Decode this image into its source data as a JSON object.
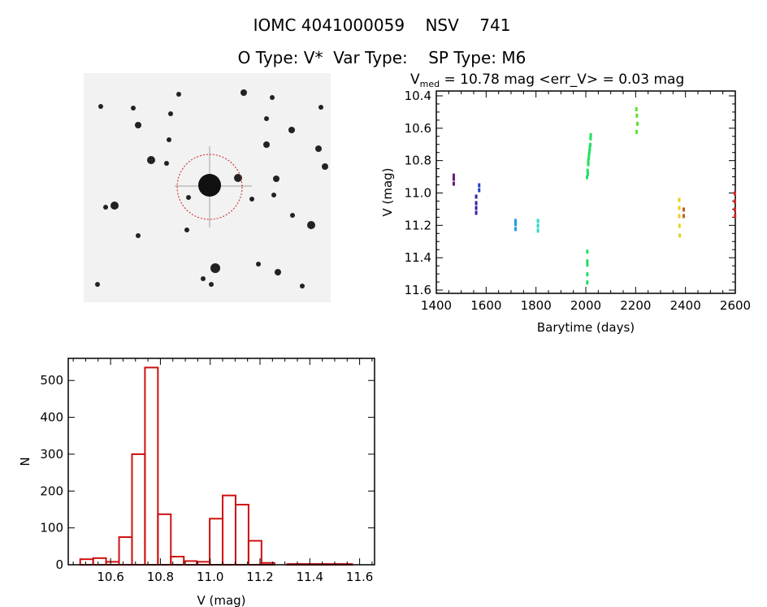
{
  "header": {
    "title": "IOMC 4041000059    NSV    741",
    "subtitle": "O Type: V*  Var Type:    SP Type: M6"
  },
  "colors": {
    "axis": "#000000",
    "hist": "#d01010",
    "circle": "#cc2020"
  },
  "chart_data": [
    {
      "type": "scatter",
      "title_prefix": "V",
      "title_sub": "med",
      "title_rest": " = 10.78 mag <err_V> = 0.03 mag",
      "xlabel": "Barytime (days)",
      "ylabel": "V (mag)",
      "xlim": [
        1400,
        2600
      ],
      "ylim": [
        10.37,
        11.62
      ],
      "y_inverted": true,
      "xticks": [
        1400,
        1600,
        1800,
        2000,
        2200,
        2400,
        2600
      ],
      "xtick_labels": [
        "1400",
        "1600",
        "1800",
        "2000",
        "2200",
        "2400",
        "2600"
      ],
      "yticks": [
        10.4,
        10.6,
        10.8,
        11.0,
        11.2,
        11.4,
        11.6
      ],
      "ytick_labels": [
        "10.4",
        "10.6",
        "10.8",
        "11.0",
        "11.2",
        "11.4",
        "11.6"
      ],
      "series": [
        {
          "color": "#6a1a7a",
          "x": [
            1470,
            1470,
            1470
          ],
          "y": [
            10.89,
            10.91,
            10.94
          ]
        },
        {
          "color": "#4020a0",
          "x": [
            1560,
            1560,
            1560,
            1560
          ],
          "y": [
            11.02,
            11.06,
            11.09,
            11.12
          ]
        },
        {
          "color": "#2040c0",
          "x": [
            1572,
            1572
          ],
          "y": [
            10.95,
            10.98
          ]
        },
        {
          "color": "#20a0d8",
          "x": [
            1718,
            1718,
            1718
          ],
          "y": [
            11.17,
            11.19,
            11.22
          ]
        },
        {
          "color": "#30d8c8",
          "x": [
            1808,
            1808,
            1808
          ],
          "y": [
            11.17,
            11.2,
            11.23
          ]
        },
        {
          "color": "#20e060",
          "x": [
            2005,
            2007,
            2010,
            2012,
            2015,
            2018,
            2020,
            2008,
            2010,
            2013,
            2016,
            2019,
            2006,
            2006,
            2006,
            2006,
            2006
          ],
          "y": [
            10.9,
            10.86,
            10.82,
            10.78,
            10.74,
            10.7,
            10.64,
            10.88,
            10.8,
            10.76,
            10.72,
            10.66,
            11.36,
            11.42,
            11.44,
            11.5,
            11.55
          ]
        },
        {
          "color": "#60e030",
          "x": [
            2203,
            2205,
            2207,
            2204
          ],
          "y": [
            10.48,
            10.52,
            10.57,
            10.62
          ]
        },
        {
          "color": "#e8d020",
          "x": [
            2375,
            2375,
            2375,
            2376,
            2377
          ],
          "y": [
            11.04,
            11.09,
            11.14,
            11.2,
            11.26
          ]
        },
        {
          "color": "#c06020",
          "x": [
            2393,
            2393
          ],
          "y": [
            11.1,
            11.14
          ]
        },
        {
          "color": "#e02020",
          "x": [
            2598,
            2598,
            2598,
            2599
          ],
          "y": [
            11.0,
            11.05,
            11.1,
            11.14
          ]
        }
      ]
    },
    {
      "type": "bar",
      "xlabel": "V (mag)",
      "ylabel": "N",
      "xlim": [
        10.43,
        11.66
      ],
      "ylim": [
        0,
        560
      ],
      "xticks": [
        10.6,
        10.8,
        11.0,
        11.2,
        11.4,
        11.6
      ],
      "xtick_labels": [
        "10.6",
        "10.8",
        "11.0",
        "11.2",
        "11.4",
        "11.6"
      ],
      "yticks": [
        0,
        100,
        200,
        300,
        400,
        500
      ],
      "ytick_labels": [
        "0",
        "100",
        "200",
        "300",
        "400",
        "500"
      ],
      "bin_start": 10.478,
      "bin_width": 0.052,
      "values": [
        15,
        18,
        8,
        75,
        300,
        535,
        137,
        22,
        10,
        8,
        125,
        188,
        163,
        65,
        5,
        0,
        2,
        2,
        2,
        2,
        2
      ]
    }
  ]
}
